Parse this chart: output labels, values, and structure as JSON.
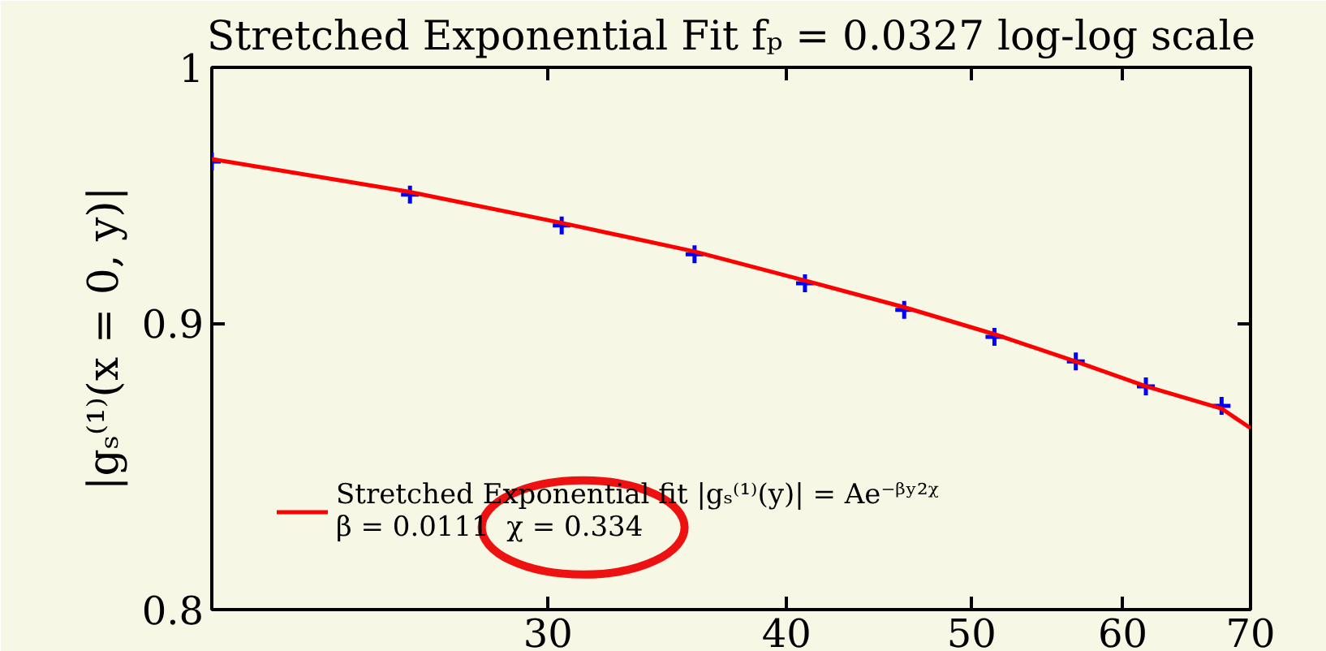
{
  "chart_data": {
    "type": "scatter",
    "title": "Stretched Exponential Fit fₚ = 0.0327 log-log scale",
    "ylabel": "|gₛ⁽¹⁾(x = 0, y)|",
    "x": [
      20,
      25.4,
      30.5,
      35.8,
      40.9,
      46.1,
      51.4,
      56.7,
      61.7,
      67.6
    ],
    "series": [
      {
        "color": "#0000ff",
        "marker": "cross",
        "values": [
          0.962,
          0.949,
          0.937,
          0.926,
          0.915,
          0.905,
          0.895,
          0.886,
          0.877,
          0.87
        ]
      },
      {
        "type": "line",
        "name": "Stretched Exponential fit |gₛ⁽¹⁾(y)| = Ae⁻ᵝʸ²ᵡ\nβ = 0.0111  χ = 0.334",
        "color": "#ff0000",
        "line_style": "solid",
        "x": [
          20,
          25.4,
          30.5,
          35.8,
          40.9,
          46.1,
          51.4,
          56.7,
          61.7,
          67.6,
          70
        ],
        "values": [
          0.963,
          0.95,
          0.938,
          0.927,
          0.916,
          0.906,
          0.896,
          0.886,
          0.877,
          0.869,
          0.862
        ]
      }
    ],
    "log": "xy",
    "xlim": [
      20,
      70
    ],
    "ylim": [
      0.8,
      1
    ],
    "xticks": [
      30,
      40,
      50,
      60,
      70
    ],
    "yticks": [
      0.8,
      0.9,
      1
    ],
    "grid": false,
    "legend": "bottom left"
  }
}
